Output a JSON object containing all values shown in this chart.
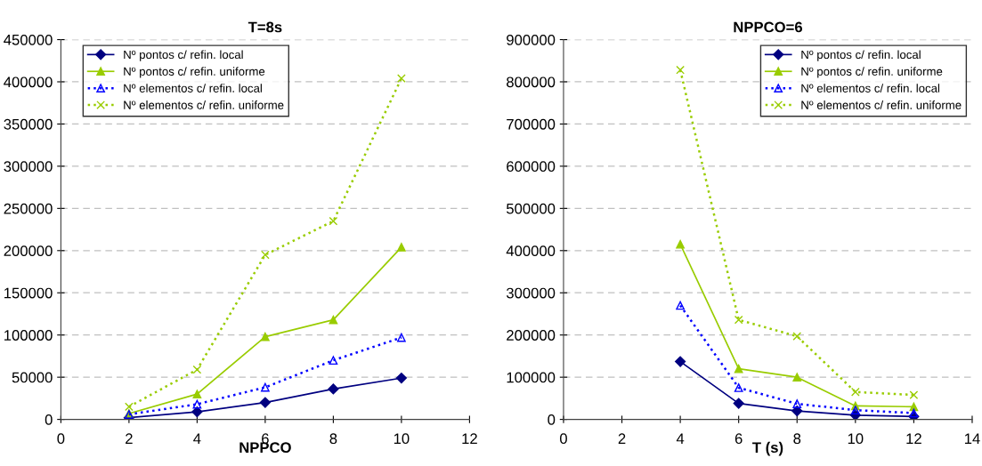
{
  "chart_data": [
    {
      "type": "line",
      "title": "T=8s",
      "xlabel": "NPPCO",
      "x": [
        2,
        4,
        6,
        8,
        10
      ],
      "xlim": [
        0,
        12
      ],
      "xticks": [
        0,
        2,
        4,
        6,
        8,
        10,
        12
      ],
      "ylim": [
        0,
        450000
      ],
      "yticks": [
        0,
        50000,
        100000,
        150000,
        200000,
        250000,
        300000,
        350000,
        400000,
        450000
      ],
      "grid": "y",
      "legend": "top left",
      "series": [
        {
          "name": "Nº pontos c/ refin. local",
          "color": "#000080",
          "marker": "diamond",
          "line_style": "solid",
          "values": [
            2000,
            9000,
            20000,
            36000,
            49000
          ]
        },
        {
          "name": "Nº pontos c/ refin. uniforme",
          "color": "#99cc00",
          "marker": "triangle",
          "line_style": "solid",
          "values": [
            7000,
            30000,
            98000,
            118000,
            204000
          ]
        },
        {
          "name": "Nº elementos c/ refin. local",
          "color": "#0000ff",
          "marker": "triangle",
          "line_style": "dotted",
          "values": [
            6000,
            18000,
            38000,
            70000,
            97000
          ]
        },
        {
          "name": "Nº elementos c/ refin. uniforme",
          "color": "#99cc00",
          "marker": "cross",
          "line_style": "dotted",
          "values": [
            15000,
            59000,
            195000,
            235000,
            404000
          ]
        }
      ]
    },
    {
      "type": "line",
      "title": "NPPCO=6",
      "xlabel": "T (s)",
      "x": [
        4,
        6,
        8,
        10,
        12
      ],
      "xlim": [
        0,
        14
      ],
      "xticks": [
        0,
        2,
        4,
        6,
        8,
        10,
        12,
        14
      ],
      "ylim": [
        0,
        900000
      ],
      "yticks": [
        0,
        100000,
        200000,
        300000,
        400000,
        500000,
        600000,
        700000,
        800000,
        900000
      ],
      "grid": "y",
      "legend": "top right",
      "series": [
        {
          "name": "Nº pontos c/ refin. local",
          "color": "#000080",
          "marker": "diamond",
          "line_style": "solid",
          "values": [
            137000,
            38000,
            20000,
            10000,
            7000
          ]
        },
        {
          "name": "Nº pontos c/ refin. uniforme",
          "color": "#99cc00",
          "marker": "triangle",
          "line_style": "solid",
          "values": [
            415000,
            120000,
            100000,
            32000,
            30000
          ]
        },
        {
          "name": "Nº elementos c/ refin. local",
          "color": "#0000ff",
          "marker": "triangle",
          "line_style": "dotted",
          "values": [
            270000,
            75000,
            37000,
            22000,
            15000
          ]
        },
        {
          "name": "Nº elementos c/ refin. uniforme",
          "color": "#99cc00",
          "marker": "cross",
          "line_style": "dotted",
          "values": [
            828000,
            236000,
            197000,
            65000,
            58000
          ]
        }
      ]
    }
  ]
}
